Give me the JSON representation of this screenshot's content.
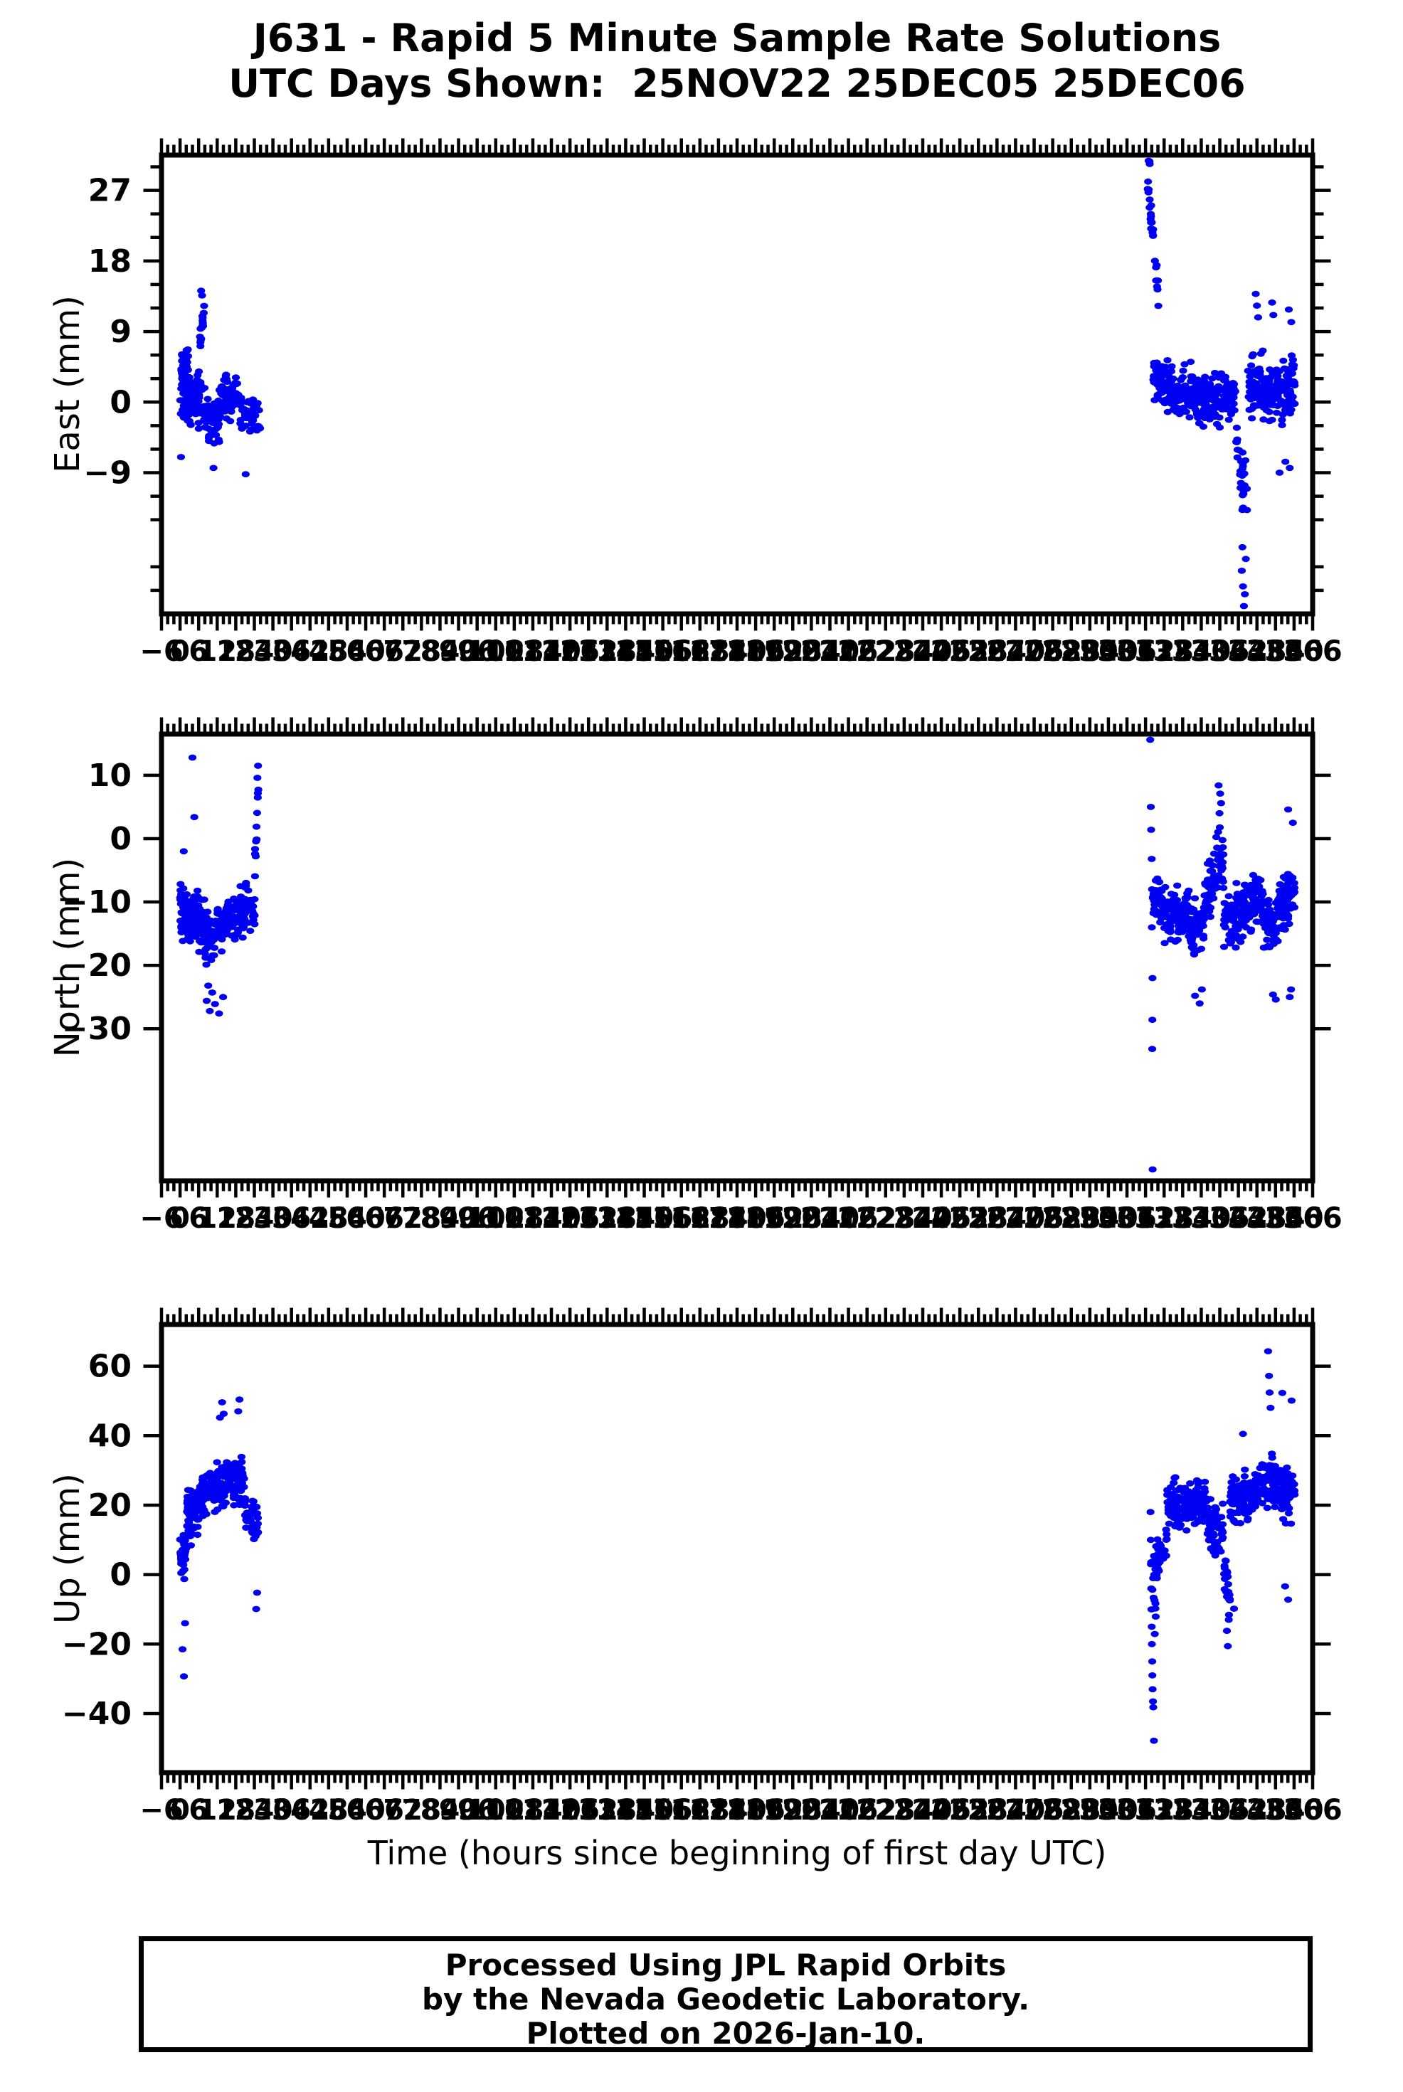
{
  "title": {
    "line1": "J631 - Rapid 5 Minute Sample Rate Solutions",
    "line2": "UTC Days Shown:  25NOV22 25DEC05 25DEC06"
  },
  "x_axis": {
    "title": "Time (hours since beginning of first day UTC)",
    "min": -6,
    "max": 366,
    "label_step": 6,
    "major_tick_step": 6,
    "minor_tick_step": 2
  },
  "footer": {
    "line1": "Processed Using JPL Rapid Orbits",
    "line2": "by the Nevada Geodetic Laboratory.",
    "line3": "Plotted on 2026-Jan-10."
  },
  "style": {
    "point_color": "#0000f2",
    "axis_color": "#000000",
    "text_color": "#000000",
    "background": "#ffffff"
  },
  "chart_data": [
    {
      "type": "scatter",
      "name": "East",
      "ylabel": "East (mm)",
      "ylim": [
        -27,
        31.5
      ],
      "yticks": [
        27,
        18,
        9,
        0,
        -9
      ],
      "y_minor_step": 3,
      "segment_format": [
        "hour_start",
        "hour_end",
        "n_points",
        "center_start_mm",
        "center_end_mm",
        "half_spread_mm"
      ],
      "segments": [
        [
          0,
          3,
          58,
          1.0,
          1.0,
          5.5
        ],
        [
          0.4,
          2.6,
          20,
          5.5,
          5.5,
          3.5
        ],
        [
          3,
          8,
          66,
          0.5,
          0.5,
          5.0
        ],
        [
          6.4,
          7.9,
          16,
          8.0,
          12.0,
          2.2
        ],
        [
          8,
          13,
          56,
          -2.0,
          -2.0,
          5.0
        ],
        [
          13,
          19,
          58,
          0.5,
          0.5,
          4.5
        ],
        [
          19,
          26,
          48,
          -1.5,
          -2.5,
          4.5
        ],
        [
          312.6,
          316.2,
          26,
          28.5,
          13.5,
          2.2
        ],
        [
          312.9,
          313.4,
          3,
          30.5,
          30.5,
          0.6
        ],
        [
          314.5,
          318.5,
          44,
          3.5,
          2.0,
          4.5
        ],
        [
          318.5,
          327,
          100,
          1.5,
          0.8,
          4.6
        ],
        [
          327,
          334,
          78,
          0.8,
          0.0,
          5.0
        ],
        [
          334,
          341,
          76,
          0.0,
          0.5,
          4.6
        ],
        [
          341.3,
          344.8,
          30,
          -6.0,
          -12.0,
          7.0
        ],
        [
          345,
          350,
          52,
          2.0,
          3.0,
          5.2
        ],
        [
          350,
          356,
          62,
          1.0,
          1.8,
          5.2
        ],
        [
          356,
          360.2,
          58,
          1.2,
          2.2,
          6.0
        ]
      ],
      "outliers": [
        [
          0.3,
          -7.0
        ],
        [
          10.8,
          -8.4
        ],
        [
          21.2,
          -9.2
        ],
        [
          7.1,
          13.6
        ],
        [
          6.8,
          14.2
        ],
        [
          343.1,
          -21.5
        ],
        [
          343.5,
          -23.5
        ],
        [
          343.8,
          -26.0
        ],
        [
          344.1,
          -24.5
        ],
        [
          343.3,
          -18.5
        ],
        [
          344.4,
          -20.0
        ],
        [
          347.6,
          13.8
        ],
        [
          348.0,
          12.3
        ],
        [
          348.4,
          10.8
        ],
        [
          352.9,
          12.7
        ],
        [
          353.3,
          11.1
        ],
        [
          358.3,
          11.8
        ],
        [
          359.1,
          10.2
        ],
        [
          357.2,
          -7.6
        ],
        [
          358.6,
          -8.4
        ],
        [
          355.3,
          -9.0
        ]
      ]
    },
    {
      "type": "scatter",
      "name": "North",
      "ylabel": "North (mm)",
      "ylim": [
        -54,
        16.5
      ],
      "yticks": [
        10,
        0,
        -10,
        -20,
        -30
      ],
      "y_minor_step": null,
      "segment_format": [
        "hour_start",
        "hour_end",
        "n_points",
        "center_start_mm",
        "center_end_mm",
        "half_spread_mm"
      ],
      "segments": [
        [
          0,
          2.5,
          60,
          -10.5,
          -12.0,
          5.5
        ],
        [
          2.5,
          7,
          72,
          -12.5,
          -13.0,
          6.0
        ],
        [
          7,
          12,
          62,
          -14.0,
          -15.0,
          6.5
        ],
        [
          12,
          18,
          62,
          -13.0,
          -12.5,
          5.5
        ],
        [
          18,
          24.2,
          56,
          -12.5,
          -10.5,
          5.5
        ],
        [
          24.2,
          25.3,
          12,
          -4.0,
          8.0,
          3.5
        ],
        [
          314.3,
          318,
          40,
          -9.0,
          -11.0,
          6.0
        ],
        [
          318,
          326,
          95,
          -11.5,
          -12.0,
          6.0
        ],
        [
          326,
          331,
          60,
          -14.5,
          -14.0,
          6.0
        ],
        [
          331,
          334.5,
          42,
          -9.0,
          -7.0,
          6.5
        ],
        [
          334.8,
          337.2,
          30,
          -4.0,
          -3.0,
          7.5
        ],
        [
          337.2,
          344,
          78,
          -12.5,
          -12.0,
          6.2
        ],
        [
          344,
          350,
          66,
          -10.5,
          -9.5,
          6.0
        ],
        [
          350,
          355,
          56,
          -13.5,
          -14.0,
          6.2
        ],
        [
          355,
          360.2,
          62,
          -10.5,
          -8.5,
          7.0
        ]
      ],
      "outliers": [
        [
          4.0,
          12.8
        ],
        [
          4.6,
          3.4
        ],
        [
          1.2,
          -2.0
        ],
        [
          25.2,
          11.5
        ],
        [
          25.0,
          9.6
        ],
        [
          8.6,
          -25.6
        ],
        [
          9.6,
          -27.2
        ],
        [
          10.4,
          -24.3
        ],
        [
          11.3,
          -26.1
        ],
        [
          12.6,
          -27.6
        ],
        [
          9.1,
          -23.2
        ],
        [
          13.9,
          -25.0
        ],
        [
          313.5,
          15.8
        ],
        [
          313.7,
          5.0
        ],
        [
          313.8,
          1.4
        ],
        [
          314.0,
          -3.2
        ],
        [
          314.1,
          -8.0
        ],
        [
          314.05,
          -14.0
        ],
        [
          314.25,
          -22.0
        ],
        [
          314.2,
          -28.6
        ],
        [
          314.15,
          -33.2
        ],
        [
          314.3,
          -52.2
        ],
        [
          328.0,
          -24.8
        ],
        [
          329.5,
          -26.0
        ],
        [
          330.2,
          -23.8
        ],
        [
          335.6,
          8.4
        ],
        [
          336.1,
          7.1
        ],
        [
          336.4,
          5.6
        ],
        [
          335.9,
          4.0
        ],
        [
          353.2,
          -24.6
        ],
        [
          354.1,
          -25.4
        ],
        [
          358.1,
          4.6
        ],
        [
          359.0,
          -23.8
        ],
        [
          358.6,
          -25.0
        ],
        [
          359.6,
          2.5
        ]
      ]
    },
    {
      "type": "scatter",
      "name": "Up",
      "ylabel": "Up (mm)",
      "ylim": [
        -57,
        72
      ],
      "yticks": [
        60,
        40,
        20,
        0,
        -20,
        -40
      ],
      "y_minor_step": null,
      "segment_format": [
        "hour_start",
        "hour_end",
        "n_points",
        "center_start_mm",
        "center_end_mm",
        "half_spread_mm"
      ],
      "segments": [
        [
          0,
          2,
          46,
          3.0,
          9.0,
          10.0
        ],
        [
          2,
          6,
          72,
          16.0,
          20.0,
          10.0
        ],
        [
          6,
          11,
          66,
          22.0,
          25.0,
          10.0
        ],
        [
          11,
          16,
          62,
          25.0,
          27.0,
          10.0
        ],
        [
          16,
          21,
          56,
          25.0,
          26.0,
          10.0
        ],
        [
          21,
          25.3,
          44,
          19.0,
          14.0,
          10.0
        ],
        [
          313.8,
          315.5,
          12,
          5.0,
          -15.0,
          12.0
        ],
        [
          314.6,
          319,
          48,
          2.0,
          10.0,
          9.0
        ],
        [
          319,
          332,
          135,
          20.0,
          21.0,
          9.5
        ],
        [
          332,
          337,
          56,
          14.0,
          12.0,
          10.0
        ],
        [
          337.3,
          339.3,
          22,
          2.0,
          -8.0,
          9.0
        ],
        [
          339.3,
          348,
          92,
          21.0,
          23.0,
          9.5
        ],
        [
          348,
          355,
          78,
          26.0,
          27.0,
          10.0
        ],
        [
          355,
          360.2,
          64,
          24.0,
          25.0,
          11.0
        ]
      ],
      "outliers": [
        [
          0.8,
          -21.5
        ],
        [
          1.25,
          -29.3
        ],
        [
          1.6,
          -14.0
        ],
        [
          13.6,
          49.6
        ],
        [
          14.1,
          46.3
        ],
        [
          19.2,
          50.4
        ],
        [
          12.9,
          45.2
        ],
        [
          18.8,
          47.0
        ],
        [
          24.6,
          -9.9
        ],
        [
          24.9,
          -5.2
        ],
        [
          313.6,
          18.0
        ],
        [
          313.7,
          10.0
        ],
        [
          313.75,
          3.0
        ],
        [
          313.85,
          -4.0
        ],
        [
          313.9,
          -10.0
        ],
        [
          314.0,
          -15.0
        ],
        [
          314.05,
          -20.0
        ],
        [
          314.15,
          -25.0
        ],
        [
          314.2,
          -29.0
        ],
        [
          314.3,
          -33.0
        ],
        [
          314.4,
          -36.5
        ],
        [
          314.5,
          -38.2
        ],
        [
          314.7,
          -47.8
        ],
        [
          338.3,
          -16.2
        ],
        [
          338.6,
          -20.6
        ],
        [
          338.9,
          -13.0
        ],
        [
          351.6,
          64.3
        ],
        [
          351.9,
          57.2
        ],
        [
          352.1,
          52.4
        ],
        [
          352.4,
          48.0
        ],
        [
          343.5,
          40.5
        ],
        [
          340.6,
          -9.8
        ],
        [
          356.2,
          52.3
        ],
        [
          359.2,
          50.1
        ],
        [
          357.1,
          -3.4
        ],
        [
          358.1,
          -7.2
        ]
      ]
    }
  ]
}
